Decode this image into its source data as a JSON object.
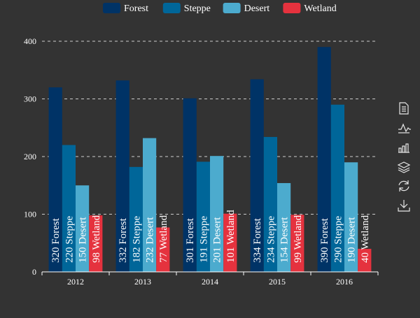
{
  "chart_data": {
    "type": "bar",
    "categories": [
      "2012",
      "2013",
      "2014",
      "2015",
      "2016"
    ],
    "series": [
      {
        "name": "Forest",
        "color": "#003366",
        "values": [
          320,
          332,
          301,
          334,
          390
        ]
      },
      {
        "name": "Steppe",
        "color": "#006699",
        "values": [
          220,
          182,
          191,
          234,
          290
        ]
      },
      {
        "name": "Desert",
        "color": "#4cabce",
        "values": [
          150,
          232,
          201,
          154,
          190
        ]
      },
      {
        "name": "Wetland",
        "color": "#e5323e",
        "values": [
          98,
          77,
          101,
          99,
          40
        ]
      }
    ],
    "ylim": [
      0,
      400
    ],
    "yticks": [
      0,
      100,
      200,
      300,
      400
    ],
    "grid": true,
    "legend_position": "top-center",
    "data_label": "value and series name, rotated vertical"
  },
  "toolbox": {
    "icons": [
      "data-view-icon",
      "line-chart-icon",
      "bar-chart-icon",
      "stack-icon",
      "restore-icon",
      "save-image-icon"
    ]
  },
  "colors": {
    "background": "#333333",
    "axis": "#ffffff",
    "grid": "#cccccc",
    "toolbox": "#e6e6e6"
  }
}
